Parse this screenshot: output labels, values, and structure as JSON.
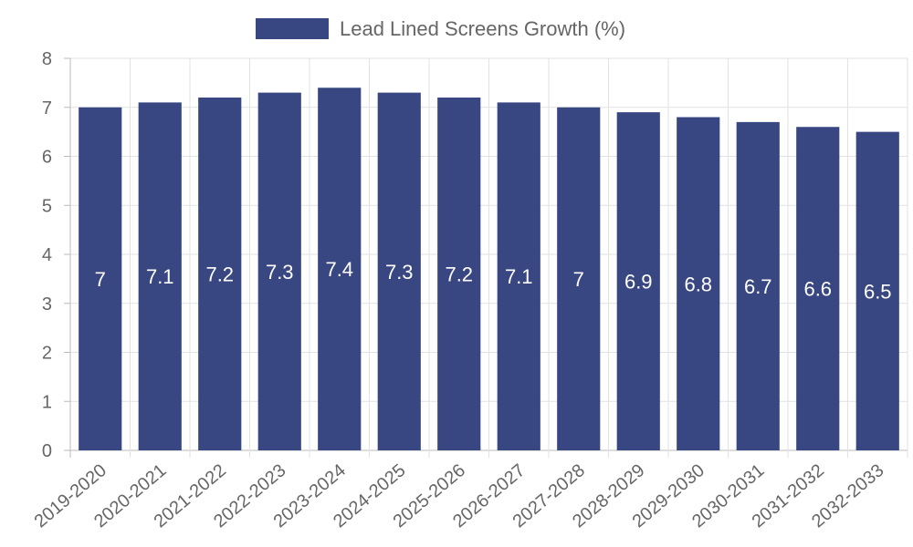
{
  "chart_data": {
    "type": "bar",
    "title": "",
    "xlabel": "",
    "ylabel": "",
    "categories": [
      "2019-2020",
      "2020-2021",
      "2021-2022",
      "2022-2023",
      "2023-2024",
      "2024-2025",
      "2025-2026",
      "2026-2027",
      "2027-2028",
      "2028-2029",
      "2029-2030",
      "2030-2031",
      "2031-2032",
      "2032-2033"
    ],
    "series": [
      {
        "name": "Lead Lined Screens Growth (%)",
        "values": [
          7,
          7.1,
          7.2,
          7.3,
          7.4,
          7.3,
          7.2,
          7.1,
          7,
          6.9,
          6.8,
          6.7,
          6.6,
          6.5
        ],
        "color": "#384682"
      }
    ],
    "ylim": [
      0,
      8
    ],
    "yticks": [
      "0",
      "1",
      "2",
      "3",
      "4",
      "5",
      "6",
      "7",
      "8"
    ],
    "grid": true,
    "legend_position": "top-center",
    "data_labels": [
      "7",
      "7.1",
      "7.2",
      "7.3",
      "7.4",
      "7.3",
      "7.2",
      "7.1",
      "7",
      "6.9",
      "6.8",
      "6.7",
      "6.6",
      "6.5"
    ]
  }
}
